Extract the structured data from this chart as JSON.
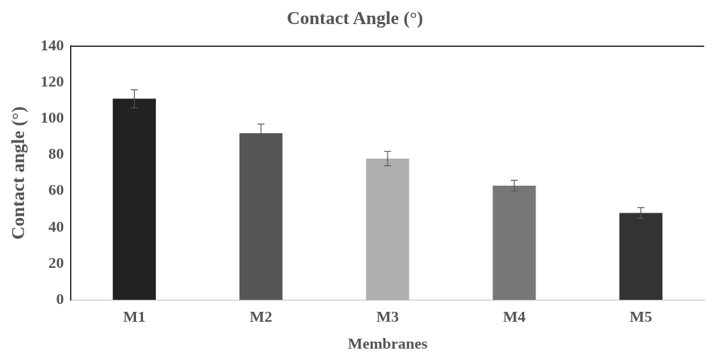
{
  "chart_data": {
    "type": "bar",
    "title": "Contact Angle (°)",
    "xlabel": "Membranes",
    "ylabel": "Contact angle (°)",
    "categories": [
      "M1",
      "M2",
      "M3",
      "M4",
      "M5"
    ],
    "values": [
      111,
      92,
      78,
      63,
      48
    ],
    "colors": [
      "#222222",
      "#555555",
      "#b0b0b0",
      "#777777",
      "#333333"
    ],
    "errors": [
      5,
      5,
      4,
      3,
      3
    ],
    "ylim": [
      0,
      140
    ],
    "yticks": [
      0,
      20,
      40,
      60,
      80,
      100,
      120,
      140
    ],
    "grid": false,
    "legend": false
  }
}
